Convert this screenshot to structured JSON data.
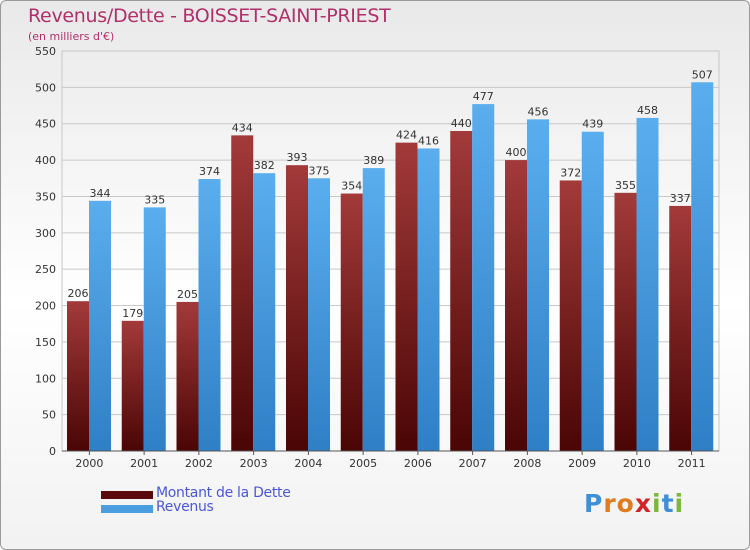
{
  "chart_data": {
    "type": "bar",
    "title": "Revenus/Dette - BOISSET-SAINT-PRIEST",
    "subtitle": "(en milliers d'€)",
    "categories": [
      "2000",
      "2001",
      "2002",
      "2003",
      "2004",
      "2005",
      "2006",
      "2007",
      "2008",
      "2009",
      "2010",
      "2011"
    ],
    "series": [
      {
        "name": "Montant de la Dette",
        "color": "#7a1a1a",
        "values": [
          206,
          179,
          205,
          434,
          393,
          354,
          424,
          440,
          400,
          372,
          355,
          337
        ]
      },
      {
        "name": "Revenus",
        "color": "#4a9ee0",
        "values": [
          344,
          335,
          374,
          382,
          375,
          389,
          416,
          477,
          456,
          439,
          458,
          507
        ]
      }
    ],
    "ylim": [
      0,
      550
    ],
    "yticks": [
      0,
      50,
      100,
      150,
      200,
      250,
      300,
      350,
      400,
      450,
      500,
      550
    ],
    "grid": true,
    "legend_position": "bottom-left"
  },
  "legend": {
    "items": [
      {
        "label": "Montant de la Dette",
        "color": "#5a0a0a"
      },
      {
        "label": "Revenus",
        "color": "#4a9ee0"
      }
    ]
  },
  "logo": {
    "letters": [
      {
        "ch": "P",
        "color": "#3f8fd6"
      },
      {
        "ch": "r",
        "color": "#e07b1f"
      },
      {
        "ch": "o",
        "color": "#e07b1f"
      },
      {
        "ch": "x",
        "color": "#d2232a"
      },
      {
        "ch": "i",
        "color": "#7bb83a"
      },
      {
        "ch": "t",
        "color": "#3f8fd6"
      },
      {
        "ch": "i",
        "color": "#7bb83a"
      }
    ]
  }
}
